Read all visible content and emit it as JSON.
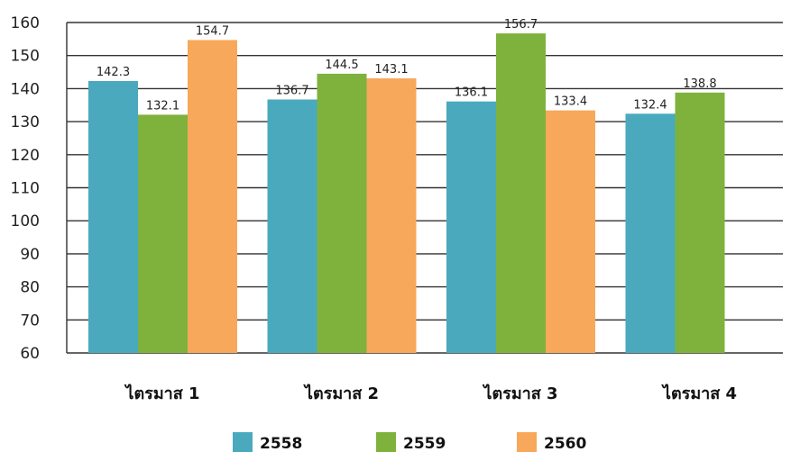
{
  "chart_data": {
    "type": "bar",
    "categories": [
      "ไตรมาส 1",
      "ไตรมาส 2",
      "ไตรมาส 3",
      "ไตรมาส 4"
    ],
    "series": [
      {
        "name": "2558",
        "color": "#4aa9bd",
        "values": [
          142.3,
          136.7,
          136.1,
          132.4
        ]
      },
      {
        "name": "2559",
        "color": "#7fb23d",
        "values": [
          132.1,
          144.5,
          156.7,
          138.8
        ]
      },
      {
        "name": "2560",
        "color": "#f7a85a",
        "values": [
          154.7,
          143.1,
          133.4,
          null
        ]
      }
    ],
    "ylim": [
      60,
      160
    ],
    "yticks": [
      60,
      70,
      80,
      90,
      100,
      110,
      120,
      130,
      140,
      150,
      160
    ],
    "grid": true,
    "legend_position": "bottom"
  }
}
